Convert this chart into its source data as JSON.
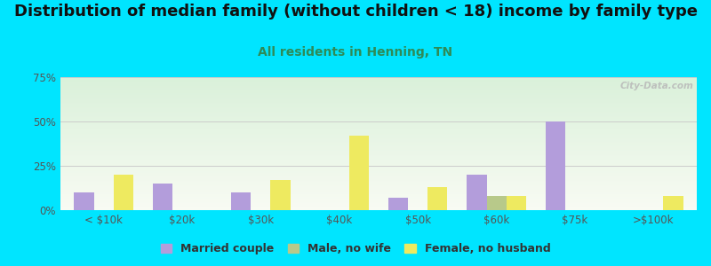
{
  "title": "Distribution of median family (without children < 18) income by family type",
  "subtitle": "All residents in Henning, TN",
  "categories": [
    "< $10k",
    "$20k",
    "$30k",
    "$40k",
    "$50k",
    "$60k",
    "$75k",
    ">$100k"
  ],
  "married_couple": [
    10,
    15,
    10,
    0,
    7,
    20,
    50,
    0
  ],
  "male_no_wife": [
    0,
    0,
    0,
    0,
    0,
    8,
    0,
    0
  ],
  "female_no_husband": [
    20,
    0,
    17,
    42,
    13,
    8,
    0,
    8
  ],
  "married_couple_color": "#b39ddb",
  "male_no_wife_color": "#b8c98a",
  "female_no_husband_color": "#eeea60",
  "background_outer": "#00e5ff",
  "ylim": [
    0,
    75
  ],
  "yticks": [
    0,
    25,
    50,
    75
  ],
  "ytick_labels": [
    "0%",
    "25%",
    "50%",
    "75%"
  ],
  "bar_width": 0.25,
  "title_fontsize": 13,
  "subtitle_fontsize": 10,
  "subtitle_color": "#2e8b57",
  "watermark": "City-Data.com",
  "legend_labels": [
    "Married couple",
    "Male, no wife",
    "Female, no husband"
  ]
}
